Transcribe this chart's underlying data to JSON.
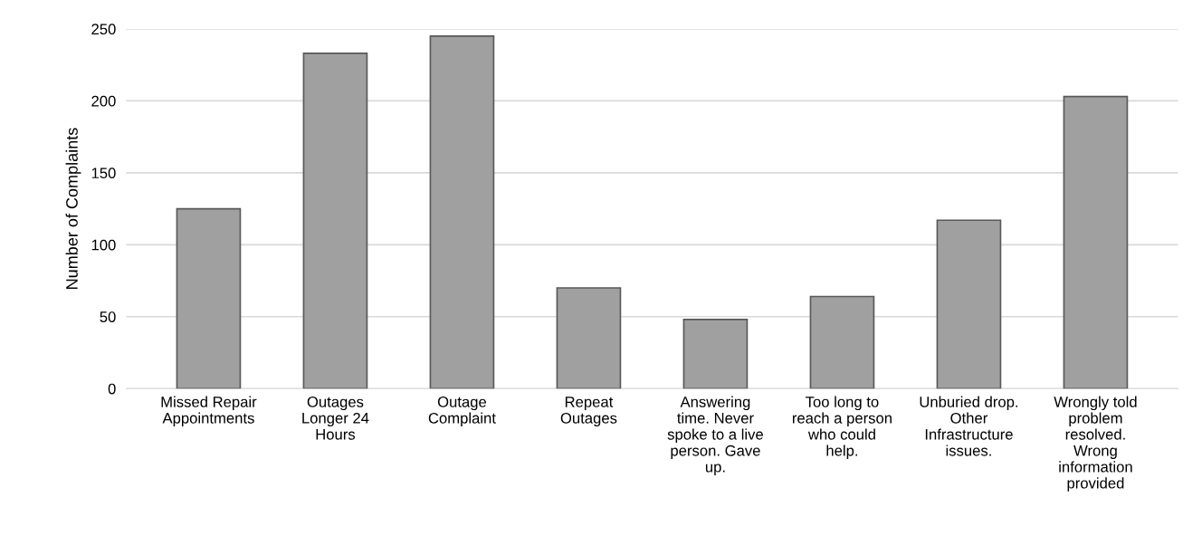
{
  "chart_data": {
    "type": "bar",
    "ylabel": "Number of Complaints",
    "categories": [
      "Missed Repair\nAppointments",
      "Outages\nLonger 24\nHours",
      "Outage\nComplaint",
      "Repeat\nOutages",
      "Answering\ntime. Never\nspoke to a live\nperson. Gave\nup.",
      "Too long to\nreach a person\nwho could\nhelp.",
      "Unburied drop.\nOther\nInfrastructure\nissues.",
      "Wrongly told\nproblem\nresolved.\nWrong\ninformation\nprovided"
    ],
    "values": [
      125,
      233,
      245,
      70,
      48,
      64,
      117,
      203
    ],
    "color": "#a0a0a0",
    "ylim": [
      0,
      250
    ],
    "yticks": [
      0,
      50,
      100,
      150,
      200,
      250
    ],
    "grid": "y",
    "legend": false
  }
}
